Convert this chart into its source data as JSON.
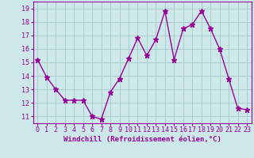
{
  "x": [
    0,
    1,
    2,
    3,
    4,
    5,
    6,
    7,
    8,
    9,
    10,
    11,
    12,
    13,
    14,
    15,
    16,
    17,
    18,
    19,
    20,
    21,
    22,
    23
  ],
  "y": [
    15.2,
    13.9,
    13.0,
    12.2,
    12.2,
    12.2,
    11.0,
    10.8,
    12.8,
    13.8,
    15.3,
    16.8,
    15.5,
    16.7,
    18.8,
    15.2,
    17.5,
    17.8,
    18.8,
    17.5,
    16.0,
    13.8,
    11.6,
    11.5
  ],
  "line_color": "#990099",
  "marker": "*",
  "bg_color": "#cce8e8",
  "grid_color": "#aacccc",
  "xlabel": "Windchill (Refroidissement éolien,°C)",
  "ylabel_ticks": [
    11,
    12,
    13,
    14,
    15,
    16,
    17,
    18,
    19
  ],
  "xlim": [
    -0.5,
    23.5
  ],
  "ylim": [
    10.5,
    19.5
  ],
  "xlabel_color": "#990099",
  "tick_color": "#990099",
  "tick_fontsize": 6.0,
  "xlabel_fontsize": 6.5,
  "marker_size": 4.5,
  "linewidth": 1.0
}
